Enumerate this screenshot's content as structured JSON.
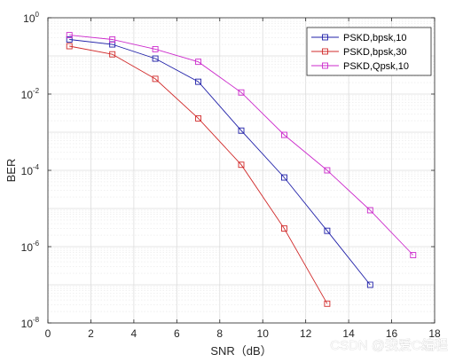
{
  "chart_data": {
    "type": "line",
    "xlabel": "SNR（dB）",
    "ylabel": "BER",
    "xlim": [
      0,
      18
    ],
    "ylim": [
      1e-08,
      1
    ],
    "yscale": "log",
    "grid": true,
    "legend_position": "top-right",
    "x_ticks": [
      "0",
      "2",
      "4",
      "6",
      "8",
      "10",
      "12",
      "14",
      "16",
      "18"
    ],
    "y_tick_exponents": [
      "0",
      "-2",
      "-4",
      "-6",
      "-8"
    ],
    "y_tick_base": "10",
    "series": [
      {
        "name": "PSKD,bpsk,10",
        "color": "#1f1fa8",
        "marker": "square",
        "x": [
          1,
          3,
          5,
          7,
          9,
          11,
          13,
          15
        ],
        "y": [
          0.27,
          0.2,
          0.085,
          0.021,
          0.0011,
          6.5e-05,
          2.6e-06,
          1e-07
        ]
      },
      {
        "name": "PSKD,bpsk,30",
        "color": "#d12b2b",
        "marker": "square",
        "x": [
          1,
          3,
          5,
          7,
          9,
          11,
          13
        ],
        "y": [
          0.18,
          0.11,
          0.025,
          0.0023,
          0.00014,
          3e-06,
          3.2e-08
        ]
      },
      {
        "name": "PSKD,Qpsk,10",
        "color": "#cc2bcc",
        "marker": "square",
        "x": [
          1,
          3,
          5,
          7,
          9,
          11,
          13,
          15,
          17
        ],
        "y": [
          0.35,
          0.27,
          0.15,
          0.07,
          0.011,
          0.00085,
          0.0001,
          9e-06,
          6e-07
        ]
      }
    ]
  },
  "watermark": "CSDN @我爱C编程"
}
